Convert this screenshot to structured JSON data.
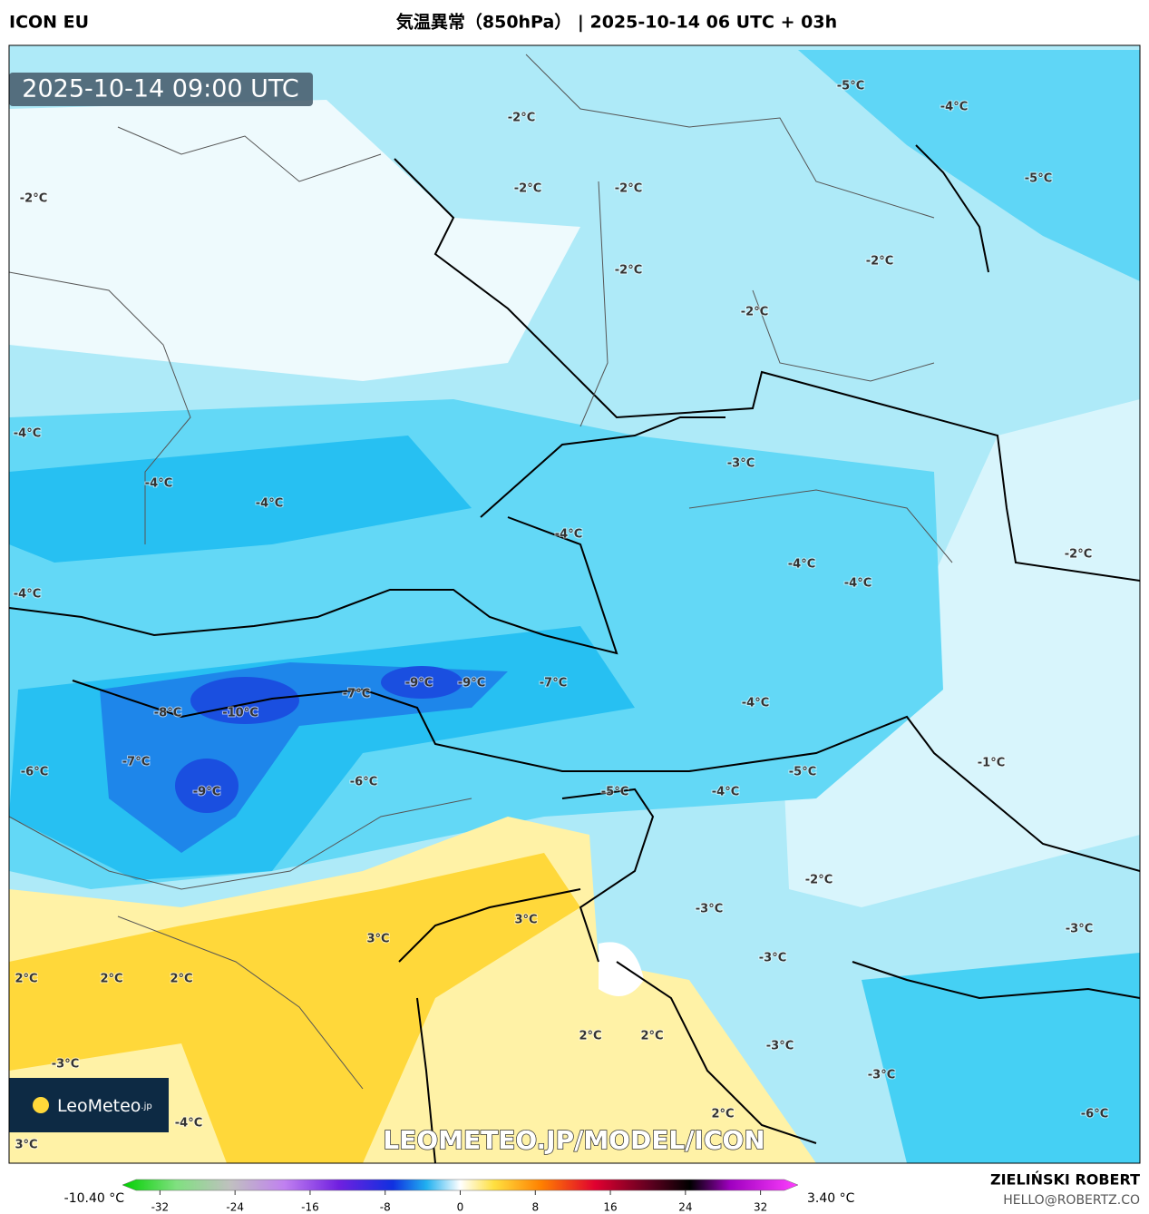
{
  "header": {
    "model": "ICON EU",
    "title": "気温異常（850hPa） | 2025-10-14 06 UTC + 03h"
  },
  "map": {
    "timestamp": "2025-10-14 09:00 UTC",
    "logo": "LeoMeteo",
    "logo_suffix": ".jp",
    "watermark": "LEOMETEO.JP/MODEL/ICON",
    "contour_labels": [
      "-2°C",
      "-5°C",
      "-4°C",
      "-2°C",
      "-2°C",
      "-2°C",
      "-5°C",
      "-2°C",
      "-2°C",
      "-2°C",
      "-4°C",
      "-4°C",
      "-4°C",
      "-3°C",
      "-4°C",
      "-2°C",
      "-4°C",
      "-4°C",
      "-4°C",
      "-9°C",
      "-9°C",
      "-7°C",
      "-7°C",
      "-8°C",
      "-10°C",
      "-4°C",
      "-7°C",
      "-1°C",
      "-6°C",
      "-5°C",
      "-6°C",
      "-9°C",
      "-5°C",
      "-4°C",
      "-2°C",
      "-3°C",
      "3°C",
      "-3°C",
      "3°C",
      "-3°C",
      "2°C",
      "2°C",
      "2°C",
      "2°C",
      "2°C",
      "-3°C",
      "-3°C",
      "-3°C",
      "2°C",
      "-6°C",
      "-4°C",
      "3°C"
    ]
  },
  "colorbar": {
    "min_label": "-10.40 °C",
    "max_label": "3.40 °C",
    "range": [
      -36,
      36
    ],
    "ticks": [
      -32,
      -24,
      -16,
      -8,
      0,
      8,
      16,
      24,
      32
    ]
  },
  "footer": {
    "author": "ZIELIŃSKI ROBERT",
    "email": "HELLO@ROBERTZ.CO"
  }
}
